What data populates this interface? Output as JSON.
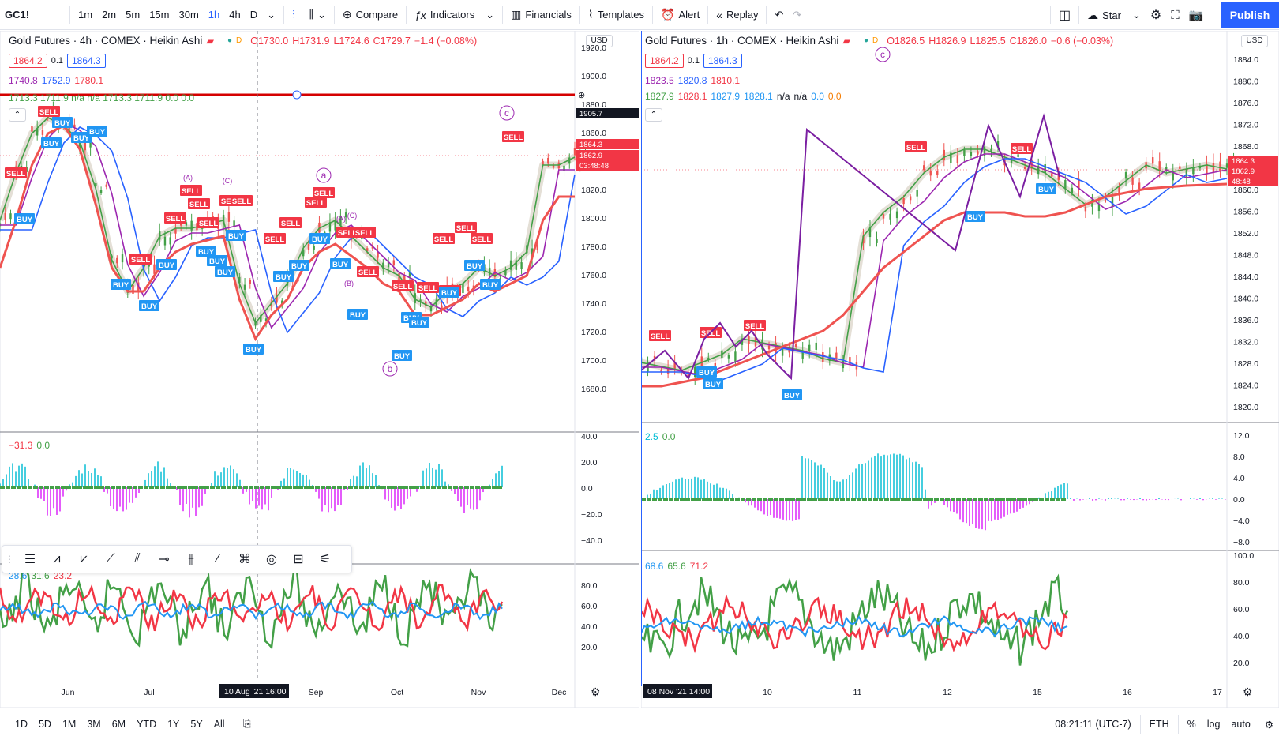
{
  "toolbar": {
    "symbol": "GC1!",
    "intervals": [
      "1m",
      "2m",
      "5m",
      "15m",
      "30m",
      "1h",
      "4h",
      "D"
    ],
    "active_interval": "1h",
    "compare_label": "Compare",
    "indicators_label": "Indicators",
    "financials_label": "Financials",
    "templates_label": "Templates",
    "alert_label": "Alert",
    "replay_label": "Replay",
    "star_label": "Star",
    "publish_label": "Publish"
  },
  "left_chart": {
    "title": "Gold Futures · 4h · COMEX · Heikin Ashi",
    "ohlc": {
      "o": "O1730.0",
      "h": "H1731.9",
      "l": "L1724.6",
      "c": "C1729.7",
      "chg": "−1.4 (−0.08%)"
    },
    "bid": "1864.2",
    "spread": "0.1",
    "ask": "1864.3",
    "ind1": [
      "1740.8",
      "1752.9",
      "1780.1"
    ],
    "ind2": "1713.3  1711.9  n/a  n/a  1713.3  1711.9  0.0  0.0",
    "currency": "USD",
    "y_ticks": [
      "1920.0",
      "1900.0",
      "1880.0",
      "1860.0",
      "1840.0",
      "1820.0",
      "1800.0",
      "1780.0",
      "1760.0",
      "1740.0",
      "1720.0",
      "1700.0",
      "1680.0"
    ],
    "hline_price": "1905.7",
    "price_tags": [
      "1864.3",
      "1862.9",
      "03:48:48"
    ],
    "x_ticks": [
      "Jun",
      "Jul",
      "Sep",
      "Oct",
      "Nov",
      "Dec"
    ],
    "crosshair_time": "10 Aug '21  16:00",
    "osc_legend": [
      "−31.3",
      "0.0"
    ],
    "osc_ticks": [
      "40.0",
      "20.0",
      "0.0",
      "−20.0",
      "−40.0"
    ],
    "rsi_legend": [
      "28.6",
      "31.6",
      "23.2"
    ],
    "rsi_ticks": [
      "80.0",
      "60.0",
      "40.0",
      "20.0"
    ],
    "wave_labels": [
      "a",
      "b",
      "c"
    ],
    "minor_labels": [
      "(A)",
      "(C)",
      "(A)",
      "(C)",
      "(B)"
    ]
  },
  "right_chart": {
    "title": "Gold Futures · 1h · COMEX · Heikin Ashi",
    "ohlc": {
      "o": "O1826.5",
      "h": "H1826.9",
      "l": "L1825.5",
      "c": "C1826.0",
      "chg": "−0.6 (−0.03%)"
    },
    "bid": "1864.2",
    "spread": "0.1",
    "ask": "1864.3",
    "ind1": [
      "1823.5",
      "1820.8",
      "1810.1"
    ],
    "ind2": [
      "1827.9",
      "1828.1",
      "1827.9",
      "1828.1",
      "n/a",
      "n/a",
      "0.0",
      "0.0"
    ],
    "currency": "USD",
    "y_ticks": [
      "1884.0",
      "1880.0",
      "1876.0",
      "1872.0",
      "1868.0",
      "1864.0",
      "1860.0",
      "1856.0",
      "1852.0",
      "1848.0",
      "1844.0",
      "1840.0",
      "1836.0",
      "1832.0",
      "1828.0",
      "1824.0",
      "1820.0"
    ],
    "price_tags": [
      "1864.3",
      "1862.9",
      "48:48"
    ],
    "x_ticks": [
      "10",
      "11",
      "12",
      "15",
      "16",
      "17"
    ],
    "crosshair_time": "08 Nov '21  14:00",
    "osc_legend": [
      "2.5",
      "0.0"
    ],
    "osc_ticks": [
      "12.0",
      "8.0",
      "4.0",
      "0.0",
      "−4.0",
      "−8.0"
    ],
    "rsi_legend": [
      "68.6",
      "65.6",
      "71.2"
    ],
    "rsi_ticks": [
      "100.0",
      "80.0",
      "60.0",
      "40.0",
      "20.0"
    ],
    "wave_label": "c"
  },
  "signals": {
    "buy": "BUY",
    "sell": "SELL"
  },
  "bottombar": {
    "ranges": [
      "1D",
      "5D",
      "1M",
      "3M",
      "6M",
      "YTD",
      "1Y",
      "5Y",
      "All"
    ],
    "time": "08:21:11 (UTC-7)",
    "session": "ETH",
    "pct": "%",
    "log": "log",
    "auto": "auto"
  },
  "colors": {
    "accent": "#2962ff",
    "sell": "#f23645",
    "buy": "#2196f3",
    "green": "#43a047",
    "red": "#ef5350",
    "purple": "#9c27b0"
  }
}
